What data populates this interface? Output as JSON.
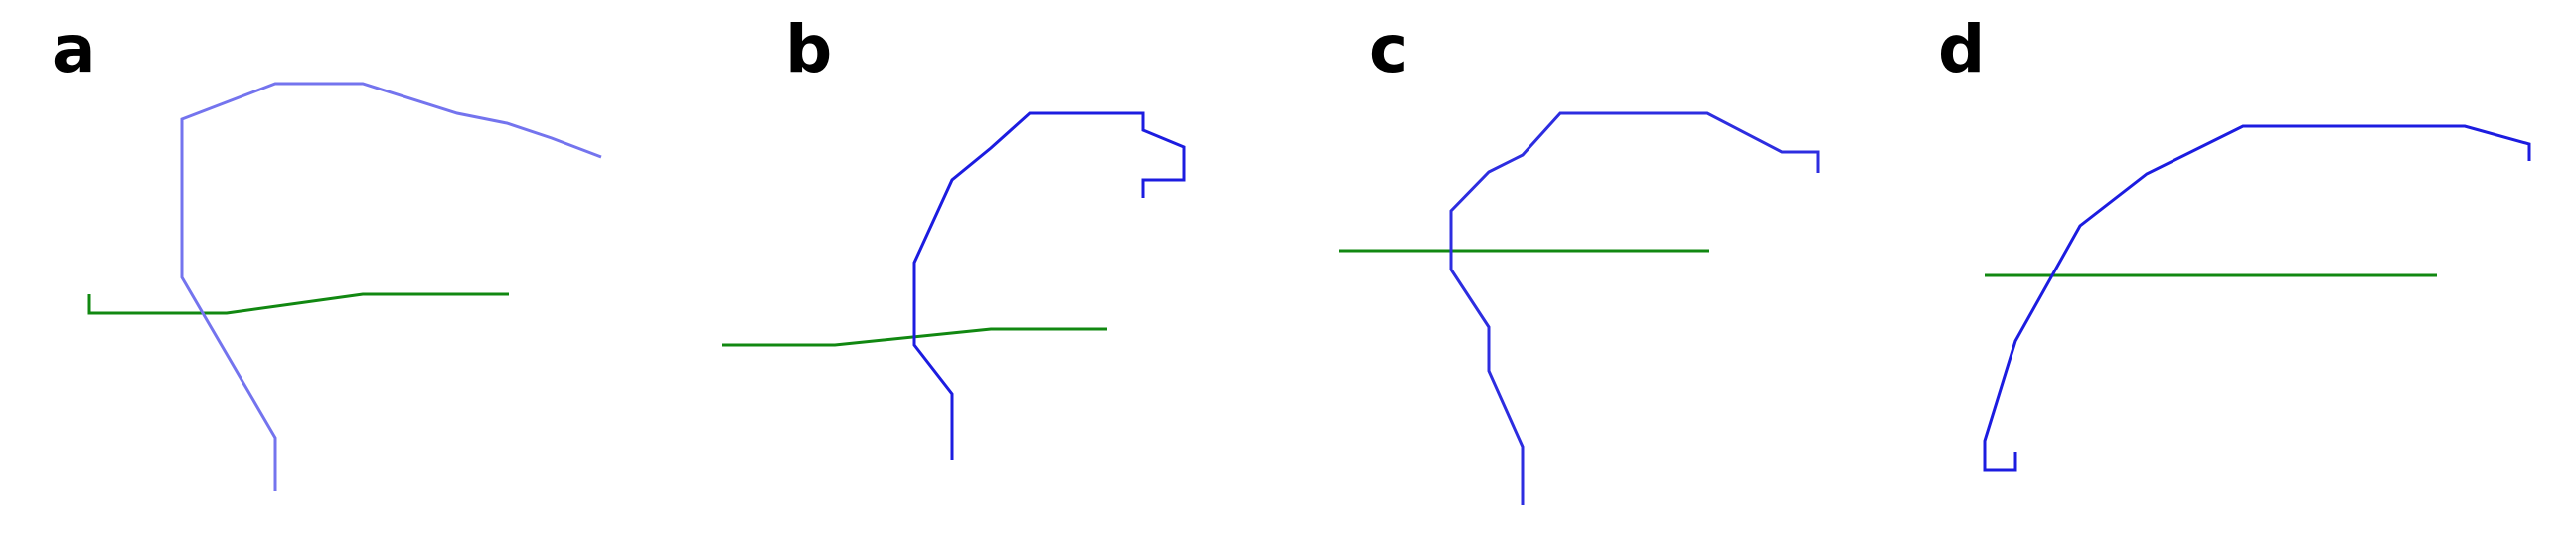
{
  "figure": {
    "panels": [
      {
        "label": "a",
        "lines": [
          {
            "id": "blue",
            "color": "#7474ee"
          },
          {
            "id": "green",
            "color": "#118811"
          }
        ]
      },
      {
        "label": "b",
        "lines": [
          {
            "id": "blue",
            "color": "#1c1ce0"
          },
          {
            "id": "green",
            "color": "#118811"
          }
        ]
      },
      {
        "label": "c",
        "lines": [
          {
            "id": "blue",
            "color": "#2d2de0"
          },
          {
            "id": "green",
            "color": "#118811"
          }
        ]
      },
      {
        "label": "d",
        "lines": [
          {
            "id": "blue",
            "color": "#1c1ce0"
          },
          {
            "id": "green",
            "color": "#118811"
          }
        ]
      }
    ]
  }
}
